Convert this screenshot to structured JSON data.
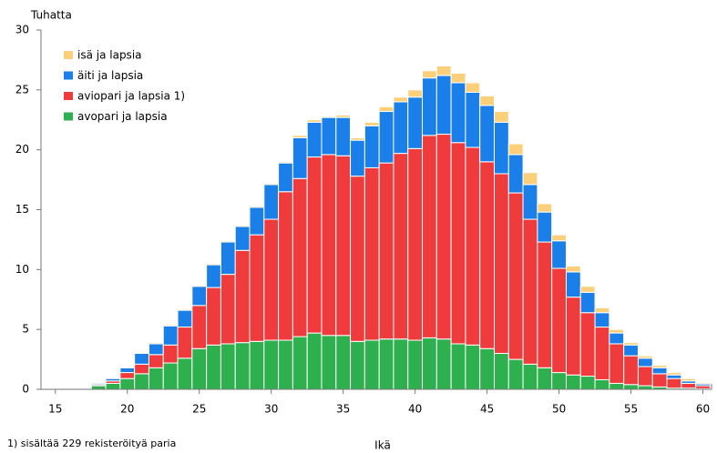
{
  "chart_data": {
    "type": "stacked_bar",
    "y_label": "Tuhatta",
    "x_label": "Ikä",
    "note": "1) sisältää 229 rekisteröityä paria",
    "x": [
      18,
      19,
      20,
      21,
      22,
      23,
      24,
      25,
      26,
      27,
      28,
      29,
      30,
      31,
      32,
      33,
      34,
      35,
      36,
      37,
      38,
      39,
      40,
      41,
      42,
      43,
      44,
      45,
      46,
      47,
      48,
      49,
      50,
      51,
      52,
      53,
      54,
      55,
      56,
      57,
      58,
      59,
      60
    ],
    "series": [
      {
        "name": "avopari ja lapsia",
        "color": "#2eb04f",
        "values": [
          0.3,
          0.5,
          0.9,
          1.3,
          1.8,
          2.2,
          2.6,
          3.4,
          3.7,
          3.8,
          3.9,
          4.0,
          4.1,
          4.1,
          4.4,
          4.7,
          4.5,
          4.5,
          4.0,
          4.1,
          4.2,
          4.2,
          4.1,
          4.3,
          4.2,
          3.8,
          3.7,
          3.4,
          3.0,
          2.5,
          2.1,
          1.8,
          1.4,
          1.2,
          1.1,
          0.8,
          0.5,
          0.4,
          0.3,
          0.2,
          0.1,
          0.1,
          0.05
        ]
      },
      {
        "name": "aviopari ja lapsia 1)",
        "color": "#ef3b3b",
        "values": [
          0.1,
          0.2,
          0.5,
          0.8,
          1.1,
          1.5,
          2.6,
          3.6,
          4.8,
          5.8,
          7.7,
          8.9,
          10.1,
          12.4,
          13.2,
          14.7,
          15.1,
          15.0,
          13.8,
          14.4,
          14.7,
          15.5,
          16.0,
          16.9,
          17.1,
          16.8,
          16.5,
          15.6,
          15.0,
          13.9,
          12.1,
          10.5,
          8.7,
          6.5,
          5.3,
          4.4,
          3.3,
          2.4,
          1.6,
          1.1,
          0.8,
          0.4,
          0.25
        ]
      },
      {
        "name": "äiti ja lapsia",
        "color": "#1a7fe8",
        "values": [
          0.1,
          0.2,
          0.4,
          0.9,
          0.9,
          1.6,
          1.4,
          1.6,
          1.9,
          2.7,
          2.0,
          2.3,
          2.9,
          2.4,
          3.4,
          2.9,
          3.1,
          3.2,
          3.0,
          3.5,
          4.3,
          4.3,
          4.3,
          4.8,
          4.9,
          5.0,
          4.6,
          4.7,
          4.3,
          3.2,
          2.9,
          2.5,
          2.3,
          2.1,
          1.7,
          1.2,
          0.9,
          0.9,
          0.7,
          0.5,
          0.3,
          0.2,
          0.15
        ]
      },
      {
        "name": "isä ja lapsia",
        "color": "#fccf7a",
        "values": [
          0,
          0.05,
          0.05,
          0.05,
          0.1,
          0.1,
          0.1,
          0.1,
          0.1,
          0.1,
          0.1,
          0.1,
          0.1,
          0.1,
          0.2,
          0.2,
          0.1,
          0.2,
          0.2,
          0.3,
          0.4,
          0.4,
          0.6,
          0.6,
          0.8,
          0.8,
          0.8,
          0.8,
          0.9,
          0.9,
          1.0,
          0.7,
          0.5,
          0.5,
          0.5,
          0.4,
          0.3,
          0.2,
          0.2,
          0.2,
          0.2,
          0.2,
          0.1
        ]
      }
    ],
    "xlim": [
      14,
      60.6
    ],
    "ylim": [
      0,
      30
    ],
    "xticks": [
      15,
      20,
      25,
      30,
      35,
      40,
      45,
      50,
      55,
      60
    ],
    "yticks": [
      0,
      5,
      10,
      15,
      20,
      25,
      30
    ],
    "legend": "upper-left"
  }
}
